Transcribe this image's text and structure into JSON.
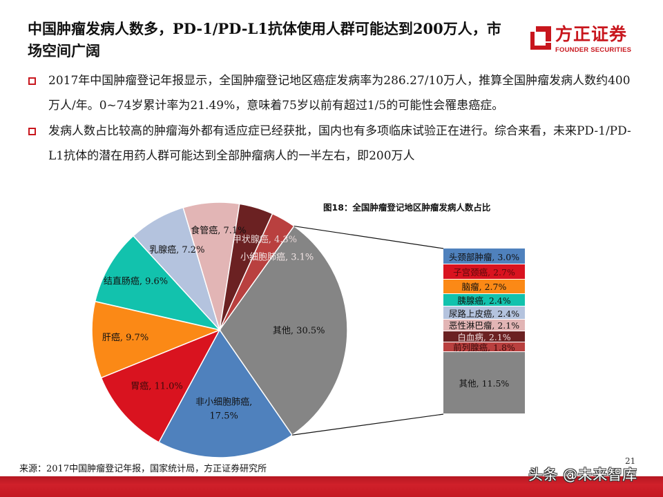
{
  "slide": {
    "title": "中国肿瘤发病人数多，PD-1/PD-L1抗体使用人群可能达到200万人，市场空间广阔",
    "logo": {
      "cn": "方正证券",
      "en": "FOUNDER SECURITIES",
      "brand_color": "#c8161d"
    },
    "bullets": [
      {
        "text": "2017年中国肿瘤登记年报显示，全国肿瘤登记地区癌症发病率为286.27/10万人，推算全国肿瘤发病人数约400万人/年。0~74岁累计率为21.49%，意味着75岁以前有超过1/5的可能性会罹患癌症。"
      },
      {
        "text": "发病人数占比较高的肿瘤海外都有适应症已经获批，国内也有多项临床试验正在进行。综合来看，未来PD-1/PD-L1抗体的潜在用药人群可能达到全部肿瘤病人的一半左右，即200万人"
      }
    ],
    "figure_title": "图18：全国肿瘤登记地区肿瘤发病人数占比",
    "source": "来源：2017中国肿瘤登记年报，国家统计局，方正证券研究所",
    "page_number": "21",
    "watermark": "头条 @未来智库"
  },
  "chart_data": [
    {
      "type": "pie",
      "title": "图18：全国肿瘤登记地区肿瘤发病人数占比",
      "start_angle_deg": 35.6,
      "direction": "clockwise",
      "slices": [
        {
          "label": "其他",
          "value": 30.5,
          "display": "其他, 30.5%",
          "color": "#858585",
          "text_color": "#111111"
        },
        {
          "label": "非小细胞肺癌",
          "value": 17.5,
          "display": "非小细胞肺癌,\n17.5%",
          "color": "#4f81bd",
          "text_color": "#111111"
        },
        {
          "label": "胃癌",
          "value": 11.0,
          "display": "胃癌, 11.0%",
          "color": "#d9131f",
          "text_color": "#3a0a0a"
        },
        {
          "label": "肝癌",
          "value": 9.7,
          "display": "肝癌, 9.7%",
          "color": "#fb8916",
          "text_color": "#111111"
        },
        {
          "label": "结直肠癌",
          "value": 9.6,
          "display": "结直肠癌, 9.6%",
          "color": "#12c2ad",
          "text_color": "#111111"
        },
        {
          "label": "乳腺癌",
          "value": 7.2,
          "display": "乳腺癌, 7.2%",
          "color": "#b4c3de",
          "text_color": "#111111"
        },
        {
          "label": "食管癌",
          "value": 7.1,
          "display": "食管癌, 7.1%",
          "color": "#e2b5b5",
          "text_color": "#111111"
        },
        {
          "label": "甲状腺癌",
          "value": 4.3,
          "display": "甲状腺癌, 4.3%",
          "color": "#6b2122",
          "text_color": "#e8d8d8"
        },
        {
          "label": "小细胞肺癌",
          "value": 3.1,
          "display": "小细胞肺癌, 3.1%",
          "color": "#b9403f",
          "text_color": "#f3e6e6"
        }
      ]
    },
    {
      "type": "bar",
      "subtitle": "Breakdown of 其他 (30.5%)",
      "stacked": true,
      "orientation": "vertical-stack",
      "segments": [
        {
          "label": "头颈部肿瘤",
          "value": 3.0,
          "display": "头颈部肿瘤, 3.0%",
          "color": "#4f81bd",
          "text_color": "#111111"
        },
        {
          "label": "子宫颈癌",
          "value": 2.7,
          "display": "子宫颈癌, 2.7%",
          "color": "#d9131f",
          "text_color": "#5a0a0a"
        },
        {
          "label": "脑瘤",
          "value": 2.7,
          "display": "脑瘤, 2.7%",
          "color": "#fb8916",
          "text_color": "#111111"
        },
        {
          "label": "胰腺癌",
          "value": 2.4,
          "display": "胰腺癌, 2.4%",
          "color": "#12c2ad",
          "text_color": "#111111"
        },
        {
          "label": "尿路上皮癌",
          "value": 2.4,
          "display": "尿路上皮癌, 2.4%",
          "color": "#b4c3de",
          "text_color": "#111111"
        },
        {
          "label": "恶性淋巴瘤",
          "value": 2.1,
          "display": "恶性淋巴瘤, 2.1%",
          "color": "#e2b5b5",
          "text_color": "#111111"
        },
        {
          "label": "白血病",
          "value": 2.1,
          "display": "白血病, 2.1%",
          "color": "#6b2122",
          "text_color": "#f0e0e0"
        },
        {
          "label": "前列腺癌",
          "value": 1.8,
          "display": "前列腺癌, 1.8%",
          "color": "#b9403f",
          "text_color": "#3a0a0a"
        },
        {
          "label": "其他",
          "value": 11.5,
          "display": "其他, 11.5%",
          "color": "#858585",
          "text_color": "#111111"
        }
      ]
    }
  ]
}
